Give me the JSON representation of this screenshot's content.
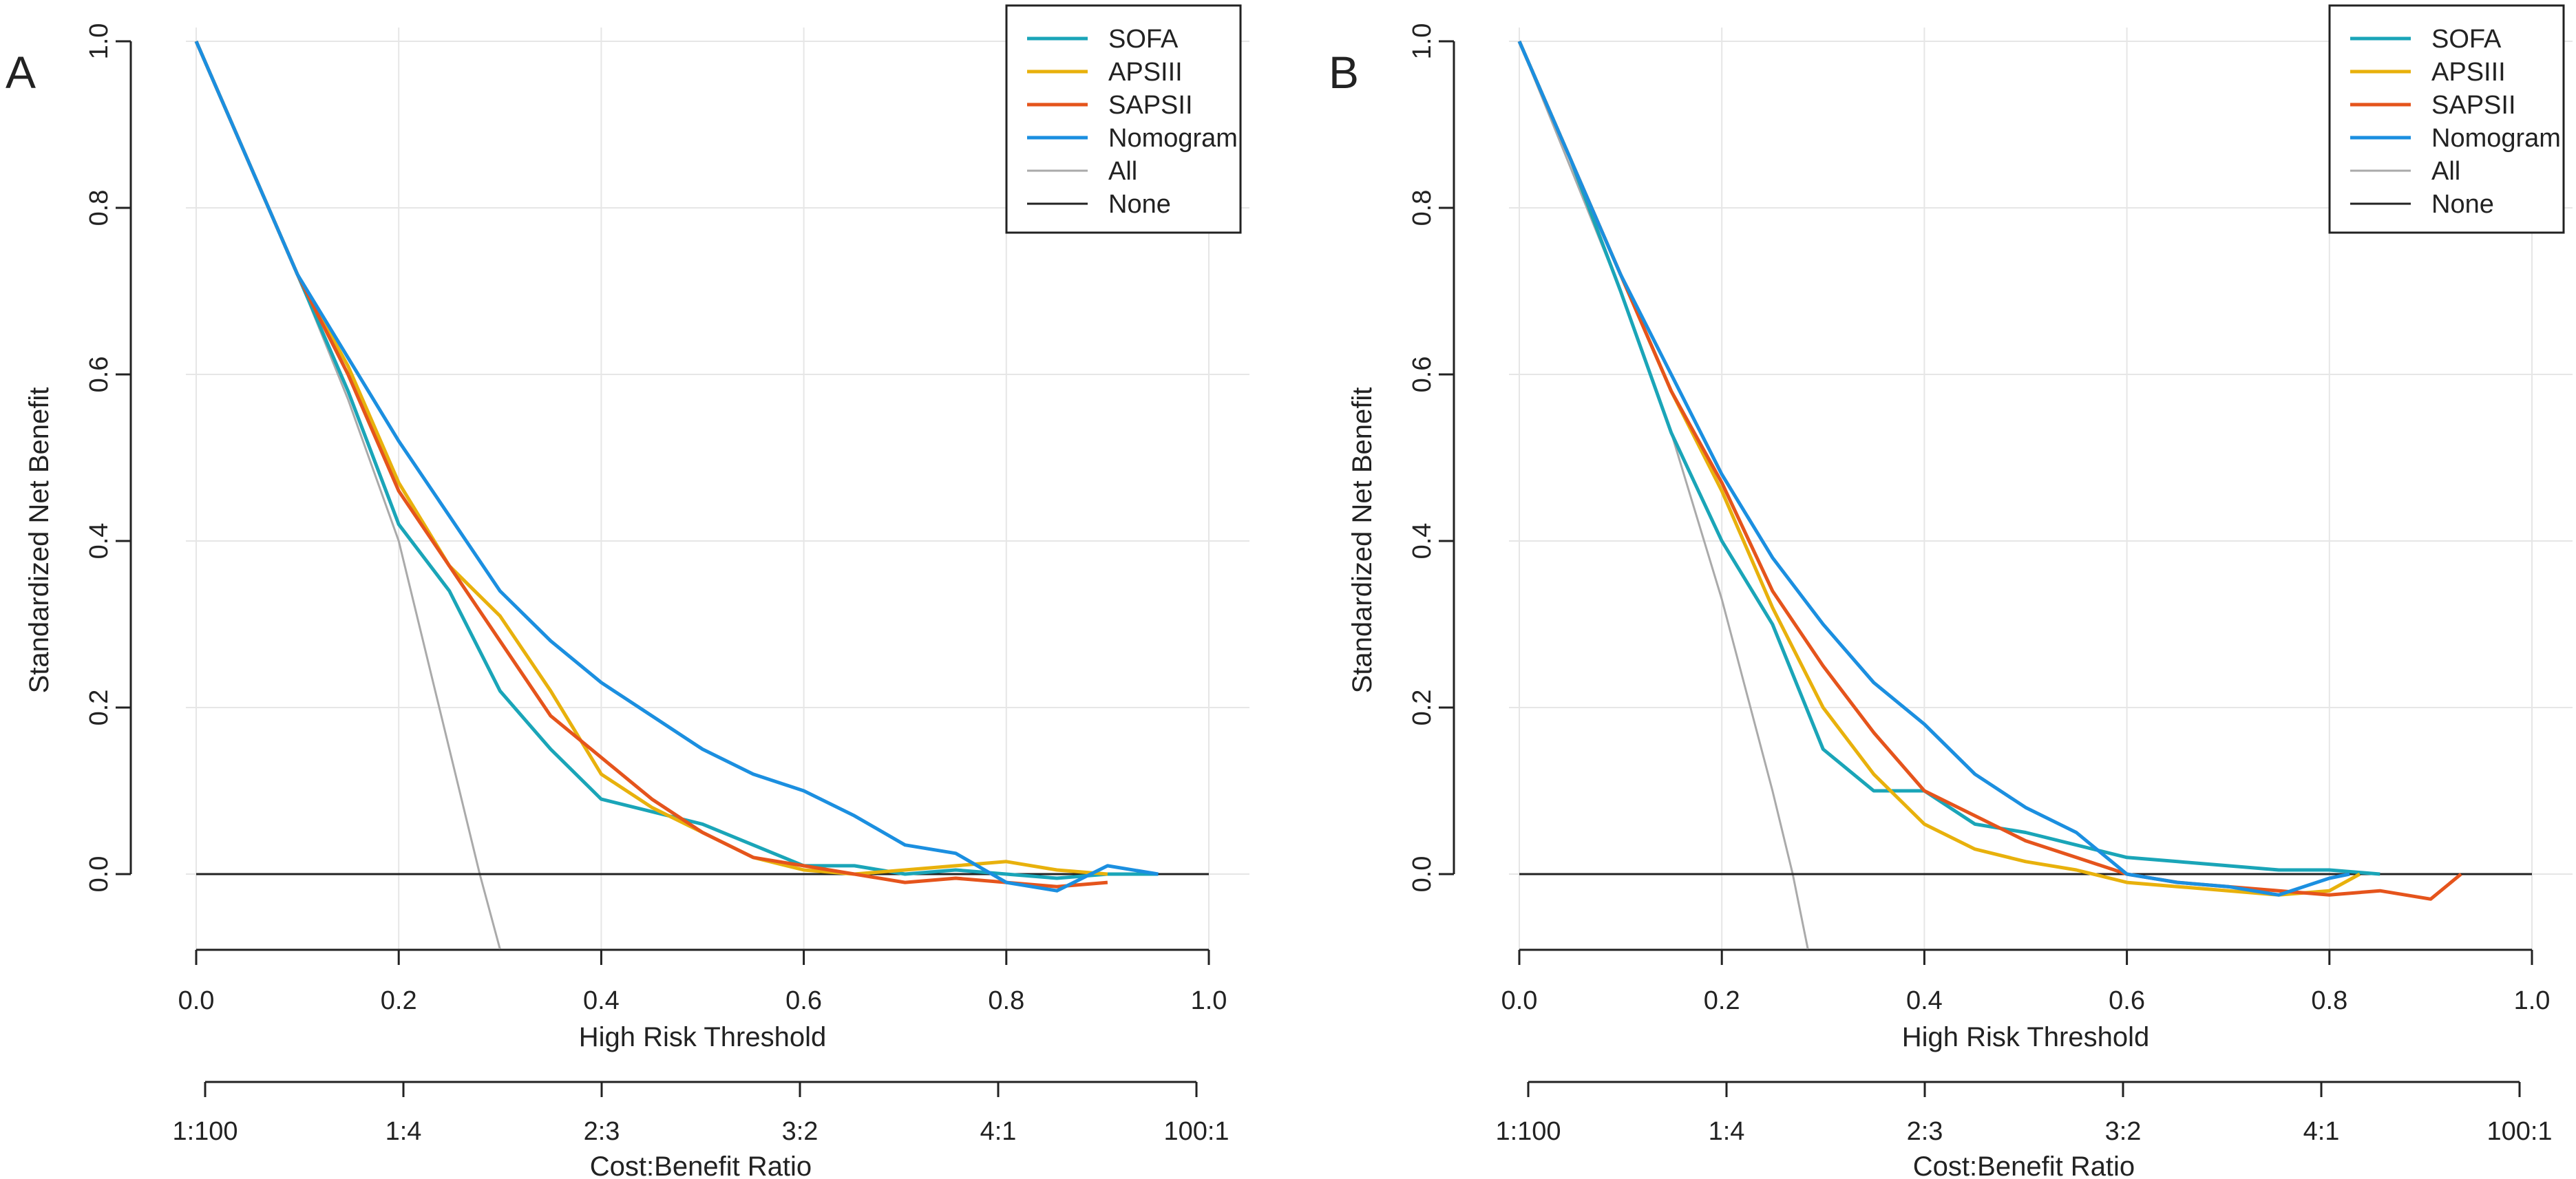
{
  "chart_data": [
    {
      "type": "line",
      "panel_label": "A",
      "xlabel": "High Risk Threshold",
      "ylabel": "Standardized Net Benefit",
      "secondary_xlabel": "Cost:Benefit Ratio",
      "xlim": [
        0,
        1
      ],
      "ylim": [
        -0.09,
        1.0
      ],
      "xticks": [
        "0.0",
        "0.2",
        "0.4",
        "0.6",
        "0.8",
        "1.0"
      ],
      "yticks": [
        "0.0",
        "0.2",
        "0.4",
        "0.6",
        "0.8",
        "1.0"
      ],
      "secondary_ticks": [
        "1:100",
        "1:4",
        "2:3",
        "3:2",
        "4:1",
        "100:1"
      ],
      "grid": true,
      "legend_position": "top-right",
      "series": [
        {
          "name": "SOFA",
          "color": "#1AA5B8",
          "x": [
            0,
            0.05,
            0.1,
            0.15,
            0.2,
            0.25,
            0.3,
            0.35,
            0.4,
            0.45,
            0.5,
            0.55,
            0.6,
            0.65,
            0.7,
            0.75,
            0.8,
            0.85,
            0.9,
            0.95
          ],
          "y": [
            1.0,
            0.86,
            0.72,
            0.58,
            0.42,
            0.34,
            0.22,
            0.15,
            0.09,
            0.075,
            0.06,
            0.035,
            0.01,
            0.01,
            0.0,
            0.005,
            0.0,
            -0.005,
            0.0,
            0.0
          ]
        },
        {
          "name": "APSIII",
          "color": "#E8B10C",
          "x": [
            0,
            0.05,
            0.1,
            0.15,
            0.2,
            0.25,
            0.3,
            0.35,
            0.4,
            0.45,
            0.5,
            0.55,
            0.6,
            0.65,
            0.7,
            0.75,
            0.8,
            0.85,
            0.9
          ],
          "y": [
            1.0,
            0.86,
            0.72,
            0.61,
            0.47,
            0.37,
            0.31,
            0.22,
            0.12,
            0.08,
            0.05,
            0.02,
            0.005,
            0.0,
            0.005,
            0.01,
            0.015,
            0.005,
            0.0
          ]
        },
        {
          "name": "SAPSII",
          "color": "#E5541C",
          "x": [
            0,
            0.05,
            0.1,
            0.15,
            0.2,
            0.25,
            0.3,
            0.35,
            0.4,
            0.45,
            0.5,
            0.55,
            0.6,
            0.65,
            0.7,
            0.75,
            0.8,
            0.85,
            0.9
          ],
          "y": [
            1.0,
            0.86,
            0.72,
            0.6,
            0.46,
            0.37,
            0.28,
            0.19,
            0.14,
            0.09,
            0.05,
            0.02,
            0.01,
            0.0,
            -0.01,
            -0.005,
            -0.01,
            -0.015,
            -0.01
          ]
        },
        {
          "name": "Nomogram",
          "color": "#1B8FE0",
          "x": [
            0,
            0.05,
            0.1,
            0.15,
            0.2,
            0.25,
            0.3,
            0.35,
            0.4,
            0.45,
            0.5,
            0.55,
            0.6,
            0.65,
            0.7,
            0.75,
            0.8,
            0.85,
            0.9,
            0.95
          ],
          "y": [
            1.0,
            0.86,
            0.72,
            0.62,
            0.52,
            0.43,
            0.34,
            0.28,
            0.23,
            0.19,
            0.15,
            0.12,
            0.1,
            0.07,
            0.035,
            0.025,
            -0.01,
            -0.02,
            0.01,
            0.0
          ]
        },
        {
          "name": "All",
          "color": "#AAAAAA",
          "x": [
            0,
            0.05,
            0.1,
            0.15,
            0.2,
            0.25,
            0.28,
            0.3
          ],
          "y": [
            1.0,
            0.86,
            0.72,
            0.57,
            0.4,
            0.15,
            0.0,
            -0.09
          ]
        },
        {
          "name": "None",
          "color": "#222222",
          "x": [
            0,
            1
          ],
          "y": [
            0,
            0
          ]
        }
      ]
    },
    {
      "type": "line",
      "panel_label": "B",
      "xlabel": "High Risk Threshold",
      "ylabel": "Standardized Net Benefit",
      "secondary_xlabel": "Cost:Benefit Ratio",
      "xlim": [
        0,
        1
      ],
      "ylim": [
        -0.09,
        1.0
      ],
      "xticks": [
        "0.0",
        "0.2",
        "0.4",
        "0.6",
        "0.8",
        "1.0"
      ],
      "yticks": [
        "0.0",
        "0.2",
        "0.4",
        "0.6",
        "0.8",
        "1.0"
      ],
      "secondary_ticks": [
        "1:100",
        "1:4",
        "2:3",
        "3:2",
        "4:1",
        "100:1"
      ],
      "grid": true,
      "legend_position": "top-right",
      "series": [
        {
          "name": "SOFA",
          "color": "#1AA5B8",
          "x": [
            0,
            0.05,
            0.1,
            0.15,
            0.2,
            0.25,
            0.3,
            0.35,
            0.4,
            0.45,
            0.5,
            0.55,
            0.6,
            0.65,
            0.7,
            0.75,
            0.8,
            0.85
          ],
          "y": [
            1.0,
            0.86,
            0.7,
            0.53,
            0.4,
            0.3,
            0.15,
            0.1,
            0.1,
            0.06,
            0.05,
            0.035,
            0.02,
            0.015,
            0.01,
            0.005,
            0.005,
            0.0
          ]
        },
        {
          "name": "APSIII",
          "color": "#E8B10C",
          "x": [
            0,
            0.05,
            0.1,
            0.15,
            0.2,
            0.25,
            0.3,
            0.35,
            0.4,
            0.45,
            0.5,
            0.55,
            0.6,
            0.65,
            0.7,
            0.75,
            0.8,
            0.83
          ],
          "y": [
            1.0,
            0.86,
            0.72,
            0.58,
            0.46,
            0.32,
            0.2,
            0.12,
            0.06,
            0.03,
            0.015,
            0.005,
            -0.01,
            -0.015,
            -0.02,
            -0.025,
            -0.02,
            0.0
          ]
        },
        {
          "name": "SAPSII",
          "color": "#E5541C",
          "x": [
            0,
            0.05,
            0.1,
            0.15,
            0.2,
            0.25,
            0.3,
            0.35,
            0.4,
            0.45,
            0.5,
            0.55,
            0.6,
            0.65,
            0.7,
            0.75,
            0.8,
            0.85,
            0.9,
            0.93
          ],
          "y": [
            1.0,
            0.86,
            0.72,
            0.58,
            0.47,
            0.34,
            0.25,
            0.17,
            0.1,
            0.07,
            0.04,
            0.02,
            0.0,
            -0.01,
            -0.015,
            -0.02,
            -0.025,
            -0.02,
            -0.03,
            0.0
          ]
        },
        {
          "name": "Nomogram",
          "color": "#1B8FE0",
          "x": [
            0,
            0.05,
            0.1,
            0.15,
            0.2,
            0.25,
            0.3,
            0.35,
            0.4,
            0.45,
            0.5,
            0.55,
            0.6,
            0.65,
            0.7,
            0.75,
            0.8,
            0.82
          ],
          "y": [
            1.0,
            0.86,
            0.72,
            0.6,
            0.48,
            0.38,
            0.3,
            0.23,
            0.18,
            0.12,
            0.08,
            0.05,
            0.0,
            -0.01,
            -0.015,
            -0.025,
            -0.005,
            0.0
          ]
        },
        {
          "name": "All",
          "color": "#AAAAAA",
          "x": [
            0,
            0.05,
            0.1,
            0.15,
            0.2,
            0.25,
            0.27,
            0.285
          ],
          "y": [
            1.0,
            0.85,
            0.7,
            0.53,
            0.33,
            0.1,
            0.0,
            -0.09
          ]
        },
        {
          "name": "None",
          "color": "#222222",
          "x": [
            0,
            1
          ],
          "y": [
            0,
            0
          ]
        }
      ]
    }
  ]
}
